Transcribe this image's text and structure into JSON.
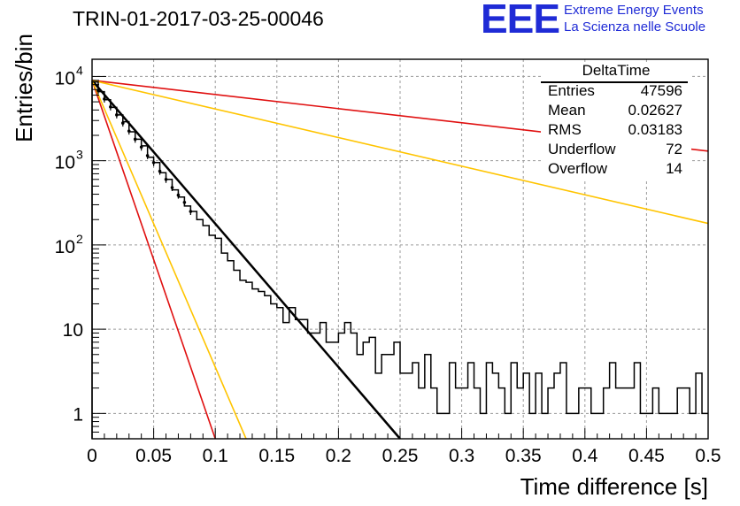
{
  "chart_data": {
    "type": "histogram",
    "title": "TRIN-01-2017-03-25-00046",
    "xlabel": "Time difference [s]",
    "ylabel": "Entries/bin",
    "xlim": [
      0,
      0.5
    ],
    "ylim": [
      0.5,
      16000
    ],
    "y_scale": "log",
    "grid": true,
    "x_ticks": [
      {
        "value": 0,
        "label": "0"
      },
      {
        "value": 0.05,
        "label": "0.05"
      },
      {
        "value": 0.1,
        "label": "0.1"
      },
      {
        "value": 0.15,
        "label": "0.15"
      },
      {
        "value": 0.2,
        "label": "0.2"
      },
      {
        "value": 0.25,
        "label": "0.25"
      },
      {
        "value": 0.3,
        "label": "0.3"
      },
      {
        "value": 0.35,
        "label": "0.35"
      },
      {
        "value": 0.4,
        "label": "0.4"
      },
      {
        "value": 0.45,
        "label": "0.45"
      },
      {
        "value": 0.5,
        "label": "0.5"
      }
    ],
    "y_ticks": [
      {
        "value": 1,
        "label": "1",
        "sup": ""
      },
      {
        "value": 10,
        "label": "10",
        "sup": ""
      },
      {
        "value": 100,
        "label": "10",
        "sup": "2"
      },
      {
        "value": 1000,
        "label": "10",
        "sup": "3"
      },
      {
        "value": 10000,
        "label": "10",
        "sup": "4"
      }
    ],
    "histogram": {
      "name": "DeltaTime",
      "bin_width": 0.005,
      "bin_start": 0,
      "counts": [
        8600,
        6600,
        5300,
        4300,
        3500,
        2900,
        2200,
        1800,
        1500,
        1100,
        950,
        720,
        600,
        450,
        370,
        290,
        250,
        200,
        170,
        130,
        120,
        80,
        65,
        50,
        38,
        36,
        30,
        28,
        25,
        20,
        18,
        12,
        18,
        13,
        13,
        9,
        9,
        12,
        7,
        7,
        9,
        12,
        9,
        5,
        7,
        8,
        3,
        5,
        5,
        7,
        3,
        3,
        4,
        2,
        5,
        2,
        1,
        1,
        4,
        2,
        2,
        4,
        2,
        1,
        4,
        3,
        2,
        1,
        4,
        2,
        3,
        1,
        3,
        1,
        2,
        3,
        4,
        1,
        1,
        2,
        2,
        1,
        1,
        2,
        4,
        2,
        2,
        2,
        4,
        1,
        1,
        2,
        1,
        1,
        1,
        2,
        2,
        1,
        3,
        1
      ]
    },
    "fit_points": [
      {
        "x": 0.005,
        "y": 6800
      },
      {
        "x": 0.01,
        "y": 5400
      },
      {
        "x": 0.015,
        "y": 4350
      },
      {
        "x": 0.02,
        "y": 3500
      },
      {
        "x": 0.025,
        "y": 2800
      },
      {
        "x": 0.03,
        "y": 2250
      },
      {
        "x": 0.035,
        "y": 1800
      },
      {
        "x": 0.04,
        "y": 1450
      },
      {
        "x": 0.045,
        "y": 1150
      },
      {
        "x": 0.05,
        "y": 950
      },
      {
        "x": 0.055,
        "y": 750
      },
      {
        "x": 0.06,
        "y": 600
      },
      {
        "x": 0.065,
        "y": 480
      },
      {
        "x": 0.07,
        "y": 390
      },
      {
        "x": 0.075,
        "y": 320
      },
      {
        "x": 0.08,
        "y": 250
      }
    ],
    "fits": [
      {
        "color": "#000000",
        "x0": 0.0,
        "y0": 9000,
        "x1": 0.25,
        "y1": 0.5,
        "width": 2.5
      },
      {
        "color": "#e01010",
        "x0": 0.0,
        "y0": 9000,
        "x1": 0.5,
        "y1": 1300,
        "width": 1.6
      },
      {
        "color": "#ffc400",
        "x0": 0.0,
        "y0": 9000,
        "x1": 0.5,
        "y1": 180,
        "width": 1.6
      },
      {
        "color": "#e01010",
        "x0": 0.0,
        "y0": 9000,
        "x1": 0.1,
        "y1": 0.5,
        "width": 1.6
      },
      {
        "color": "#ffc400",
        "x0": 0.0,
        "y0": 9000,
        "x1": 0.125,
        "y1": 0.5,
        "width": 1.6
      }
    ],
    "stats_box": {
      "title": "DeltaTime",
      "rows": [
        {
          "key": "Entries",
          "value": "47596"
        },
        {
          "key": "Mean",
          "value": "0.02627"
        },
        {
          "key": "RMS",
          "value": "0.03183"
        },
        {
          "key": "Underflow",
          "value": "72"
        },
        {
          "key": "Overflow",
          "value": "14"
        }
      ]
    }
  },
  "logo": {
    "mark": "EEE",
    "line1": "Extreme Energy Events",
    "line2": "La Scienza nelle Scuole",
    "color": "#1f2bd6"
  }
}
